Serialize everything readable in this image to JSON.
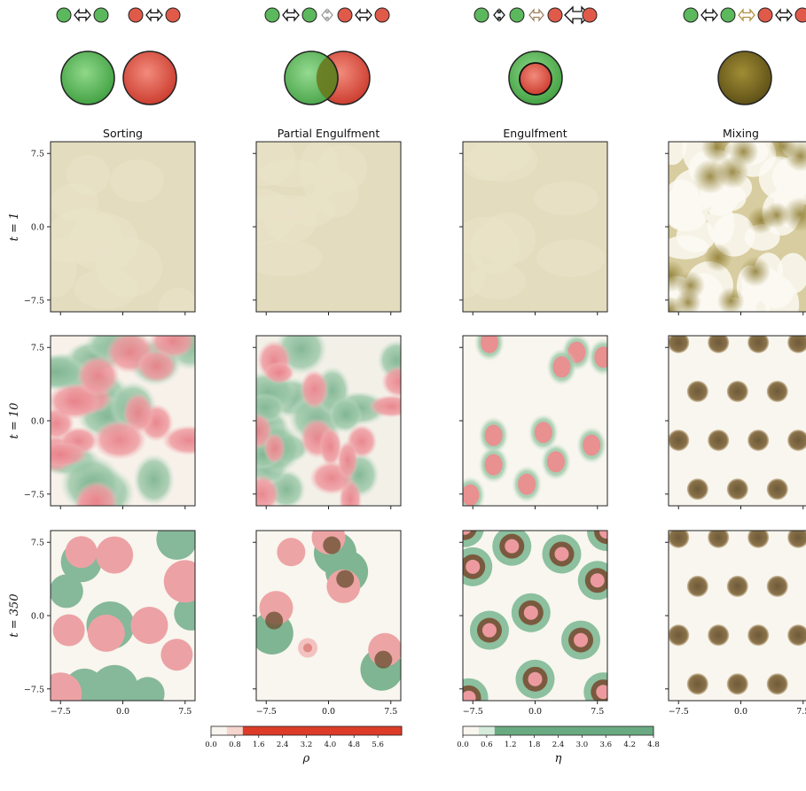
{
  "chart_data": {
    "type": "heatmap",
    "columns": [
      {
        "title": "Sorting",
        "interaction": "sorting"
      },
      {
        "title": "Partial Engulfment",
        "interaction": "partial-engulfment"
      },
      {
        "title": "Engulfment",
        "interaction": "engulfment"
      },
      {
        "title": "Mixing",
        "interaction": "mixing"
      }
    ],
    "rows": [
      {
        "label": "t = 1",
        "t": 1
      },
      {
        "label": "t = 10",
        "t": 10
      },
      {
        "label": "t = 350",
        "t": 350
      }
    ],
    "axis_range": [
      -8.7,
      8.7
    ],
    "yticks": [
      {
        "value": 7.5,
        "label": "7.5"
      },
      {
        "value": 0.0,
        "label": "0.0"
      },
      {
        "value": -7.5,
        "label": "−7.5"
      }
    ],
    "xticks": [
      {
        "value": -7.5,
        "label": "−7.5"
      },
      {
        "value": 0.0,
        "label": "0.0"
      },
      {
        "value": 7.5,
        "label": "7.5"
      }
    ],
    "colorbars": [
      {
        "symbol": "ρ",
        "ticks": [
          "0.0",
          "0.8",
          "1.6",
          "2.4",
          "3.2",
          "4.0",
          "4.8",
          "5.6"
        ],
        "range": [
          0,
          6.4
        ],
        "color": "#d73027"
      },
      {
        "symbol": "η",
        "ticks": [
          "0.0",
          "0.6",
          "1.2",
          "1.8",
          "2.4",
          "3.0",
          "3.6",
          "4.2",
          "4.8"
        ],
        "range": [
          0,
          4.8
        ],
        "color": "#5aa67a"
      }
    ],
    "colors": {
      "green": "#5cb85c",
      "red": "#e05a4a",
      "mixed": "#7a6a22",
      "background": "#f8f6ee"
    }
  }
}
